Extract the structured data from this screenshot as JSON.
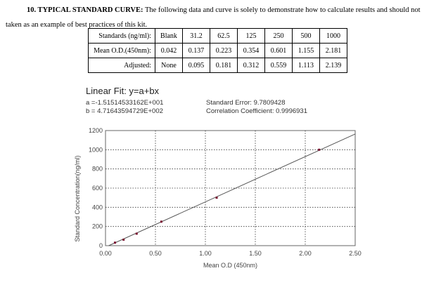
{
  "heading": {
    "number_title": "10. TYPICAL STANDARD CURVE:",
    "text": " The following data and curve is solely to demonstrate how to calculate results and should not be",
    "text2": "taken as an example of best practices of this kit."
  },
  "table": {
    "rows": [
      {
        "label": "Standards (ng/ml):",
        "cells": [
          "Blank",
          "31.2",
          "62.5",
          "125",
          "250",
          "500",
          "1000"
        ]
      },
      {
        "label": "Mean O.D.(450nm):",
        "cells": [
          "0.042",
          "0.137",
          "0.223",
          "0.354",
          "0.601",
          "1.155",
          "2.181"
        ]
      },
      {
        "label": "Adjusted:",
        "cells": [
          "None",
          "0.095",
          "0.181",
          "0.312",
          "0.559",
          "1.113",
          "2.139"
        ]
      }
    ]
  },
  "fit": {
    "title": "Linear Fit: y=a+bx",
    "a": "a =-1.51514533162E+001",
    "b": "b = 4.71643594729E+002",
    "std_error": "Standard Error: 9.7809428",
    "corr": "Correlation Coefficient: 0.9996931"
  },
  "chart_data": {
    "type": "scatter",
    "xlabel": "Mean O.D (450nm)",
    "ylabel": "Standard Concentration(ng/ml)",
    "xlim": [
      0,
      2.5
    ],
    "ylim": [
      0,
      1200
    ],
    "xticks": [
      "0.00",
      "0.50",
      "1.00",
      "1.50",
      "2.00",
      "2.50"
    ],
    "yticks": [
      "0",
      "200",
      "400",
      "600",
      "800",
      "1000",
      "1200"
    ],
    "grid": true,
    "points": {
      "x": [
        0.095,
        0.181,
        0.312,
        0.559,
        1.113,
        2.139
      ],
      "y": [
        31.2,
        62.5,
        125,
        250,
        500,
        1000
      ]
    },
    "fit_line": {
      "a": -15.1514533162,
      "b": 471.643594729
    },
    "colors": {
      "line": "#555555",
      "marker": "#7a1030",
      "grid": "#333333"
    }
  }
}
